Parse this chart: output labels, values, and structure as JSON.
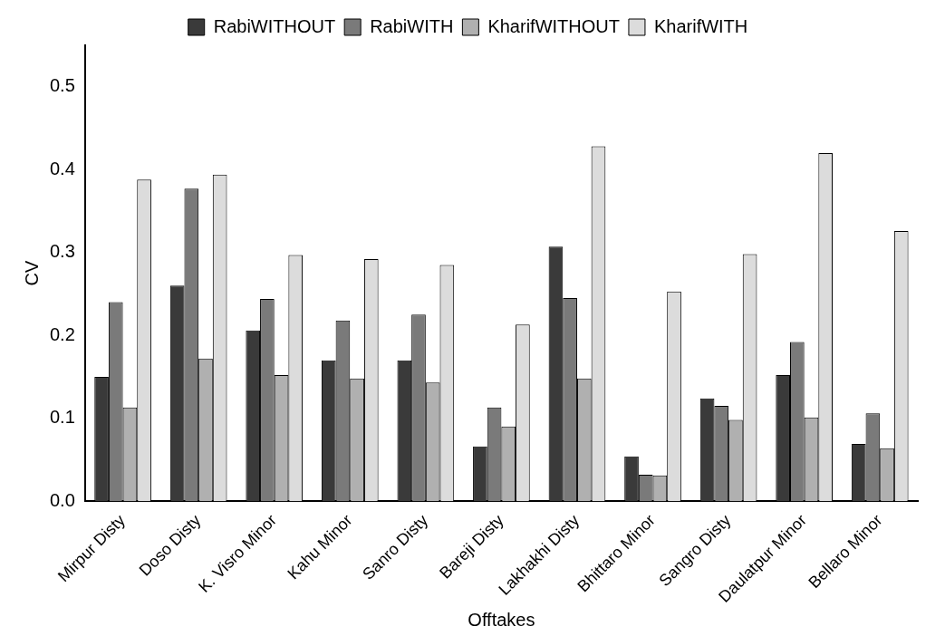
{
  "chart_data": {
    "type": "bar",
    "xlabel": "Offtakes",
    "ylabel": "CV",
    "categories": [
      "Mirpur Disty",
      "Doso Disty",
      "K. Visro Minor",
      "Kahu Minor",
      "Sanro Disty",
      "Bareji Disty",
      "Lakhakhi Disty",
      "Bhittaro Minor",
      "Sangro Disty",
      "Daulatpur Minor",
      "Bellaro Minor"
    ],
    "series": [
      {
        "name": "RabiWITHOUT",
        "color": "#3a3a3a",
        "values": [
          0.15,
          0.26,
          0.206,
          0.17,
          0.17,
          0.066,
          0.307,
          0.054,
          0.124,
          0.152,
          0.069
        ]
      },
      {
        "name": "RabiWITH",
        "color": "#7a7a7a",
        "values": [
          0.24,
          0.377,
          0.244,
          0.218,
          0.225,
          0.113,
          0.245,
          0.032,
          0.115,
          0.192,
          0.106
        ]
      },
      {
        "name": "KharifWITHOUT",
        "color": "#b0b0b0",
        "values": [
          0.113,
          0.172,
          0.152,
          0.148,
          0.143,
          0.09,
          0.148,
          0.031,
          0.098,
          0.101,
          0.064
        ]
      },
      {
        "name": "KharifWITH",
        "color": "#dcdcdc",
        "values": [
          0.388,
          0.394,
          0.297,
          0.292,
          0.285,
          0.213,
          0.428,
          0.253,
          0.298,
          0.42,
          0.326
        ]
      }
    ],
    "ylim": [
      0,
      0.55
    ],
    "yticks": [
      {
        "value": 0,
        "label": "0.0"
      },
      0.1,
      0.2,
      0.3,
      0.4,
      0.5
    ],
    "legend": "top"
  }
}
